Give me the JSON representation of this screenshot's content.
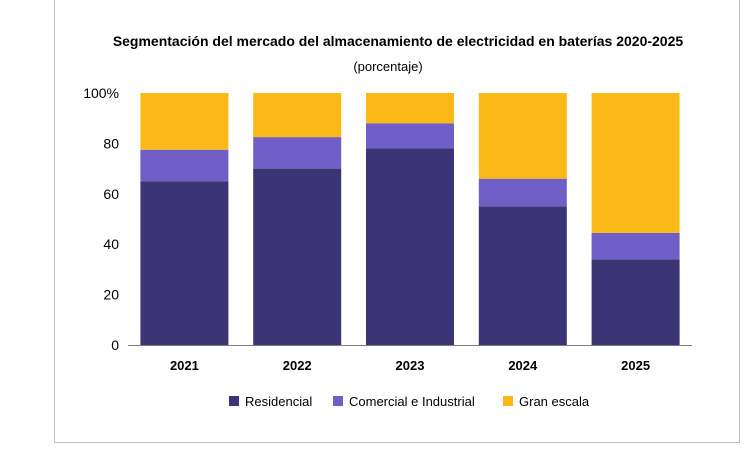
{
  "chart_data": {
    "type": "bar",
    "stacked": true,
    "title": "Segmentación del mercado del almacenamiento de electricidad en baterías 2020-2025",
    "subtitle": "(porcentaje)",
    "xlabel": "",
    "ylabel": "",
    "ylim": [
      0,
      100
    ],
    "yticks": [
      "0",
      "20",
      "40",
      "60",
      "80",
      "100%"
    ],
    "ytick_values": [
      0,
      20,
      40,
      60,
      80,
      100
    ],
    "categories": [
      "2021",
      "2022",
      "2023",
      "2024",
      "2025"
    ],
    "series": [
      {
        "name": "Residencial",
        "color": "#3b3475",
        "values": [
          65,
          70,
          78,
          55,
          34
        ]
      },
      {
        "name": "Comercial e Industrial",
        "color": "#6f5fc6",
        "values": [
          12.5,
          12.5,
          10,
          11,
          10.5
        ]
      },
      {
        "name": "Gran escala",
        "color": "#fbb918",
        "values": [
          22.5,
          17.5,
          12,
          34,
          55.5
        ]
      }
    ],
    "legend_position": "bottom"
  }
}
